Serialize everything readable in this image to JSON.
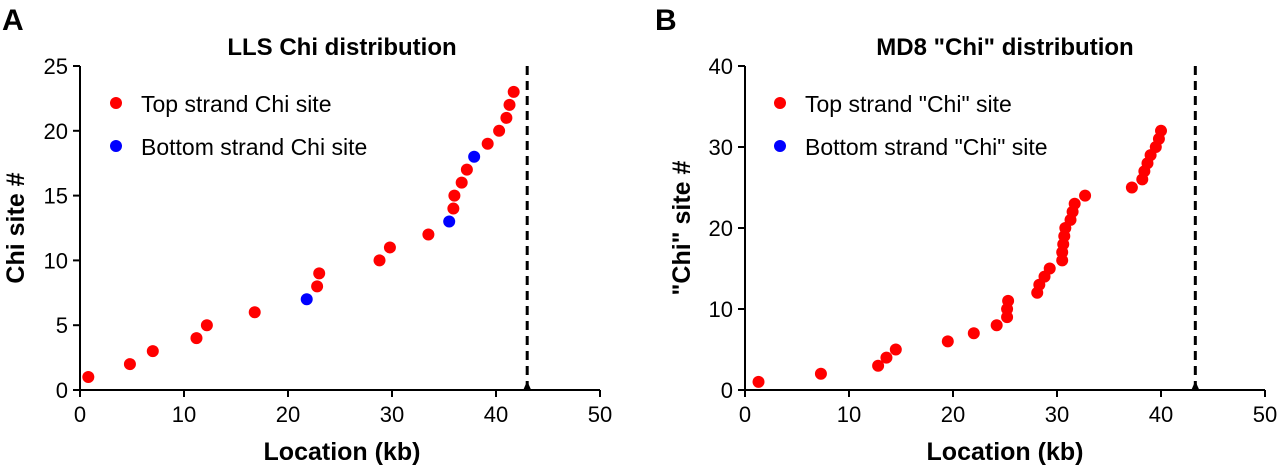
{
  "chart_data": [
    {
      "panel": "A",
      "type": "scatter",
      "title": "LLS Chi distribution",
      "xlabel": "Location (kb)",
      "ylabel": "Chi site #",
      "xlim": [
        0,
        50
      ],
      "ylim": [
        0,
        25
      ],
      "xticks": [
        0,
        10,
        20,
        30,
        40,
        50
      ],
      "yticks": [
        0,
        5,
        10,
        15,
        20,
        25
      ],
      "grid": false,
      "legend_position": "top-left",
      "marker": {
        "position": 43,
        "style": "dashed vertical line with triangle"
      },
      "series": [
        {
          "name": "Top strand Chi site",
          "color": "#ff0000",
          "points": [
            [
              0.8,
              1
            ],
            [
              4.8,
              2
            ],
            [
              7,
              3
            ],
            [
              11.2,
              4
            ],
            [
              12.2,
              5
            ],
            [
              16.8,
              6
            ],
            [
              22.8,
              8
            ],
            [
              23,
              9
            ],
            [
              28.8,
              10
            ],
            [
              29.8,
              11
            ],
            [
              33.5,
              12
            ],
            [
              35.9,
              14
            ],
            [
              36,
              15
            ],
            [
              36.7,
              16
            ],
            [
              37.2,
              17
            ],
            [
              39.2,
              19
            ],
            [
              40.3,
              20
            ],
            [
              41,
              21
            ],
            [
              41.3,
              22
            ],
            [
              41.7,
              23
            ]
          ]
        },
        {
          "name": "Bottom strand Chi site",
          "color": "#0000ff",
          "points": [
            [
              21.8,
              7
            ],
            [
              35.5,
              13
            ],
            [
              37.9,
              18
            ]
          ]
        }
      ]
    },
    {
      "panel": "B",
      "type": "scatter",
      "title": "MD8 \"Chi\"  distribution",
      "xlabel": "Location (kb)",
      "ylabel": "\"Chi\" site #",
      "xlim": [
        0,
        50
      ],
      "ylim": [
        0,
        40
      ],
      "xticks": [
        0,
        10,
        20,
        30,
        40,
        50
      ],
      "yticks": [
        0,
        10,
        20,
        30,
        40
      ],
      "grid": false,
      "legend_position": "top-left",
      "marker": {
        "position": 43.3,
        "style": "dashed vertical line with triangle"
      },
      "series": [
        {
          "name": "Top strand \"Chi\" site",
          "color": "#ff0000",
          "points": [
            [
              1.3,
              1
            ],
            [
              7.3,
              2
            ],
            [
              12.8,
              3
            ],
            [
              13.6,
              4
            ],
            [
              14.5,
              5
            ],
            [
              19.5,
              6
            ],
            [
              22,
              7
            ],
            [
              24.2,
              8
            ],
            [
              25.2,
              9
            ],
            [
              25.2,
              10
            ],
            [
              25.3,
              11
            ],
            [
              28.1,
              12
            ],
            [
              28.3,
              13
            ],
            [
              28.8,
              14
            ],
            [
              29.3,
              15
            ],
            [
              30.5,
              16
            ],
            [
              30.5,
              17
            ],
            [
              30.6,
              18
            ],
            [
              30.7,
              19
            ],
            [
              30.8,
              20
            ],
            [
              31.3,
              21
            ],
            [
              31.5,
              22
            ],
            [
              31.7,
              23
            ],
            [
              32.7,
              24
            ],
            [
              37.2,
              25
            ],
            [
              38.2,
              26
            ],
            [
              38.4,
              27
            ],
            [
              38.7,
              28
            ],
            [
              39,
              29
            ],
            [
              39.5,
              30
            ],
            [
              39.8,
              31
            ],
            [
              40,
              32
            ]
          ]
        },
        {
          "name": "Bottom strand \"Chi\" site",
          "color": "#0000ff",
          "points": []
        }
      ]
    }
  ]
}
